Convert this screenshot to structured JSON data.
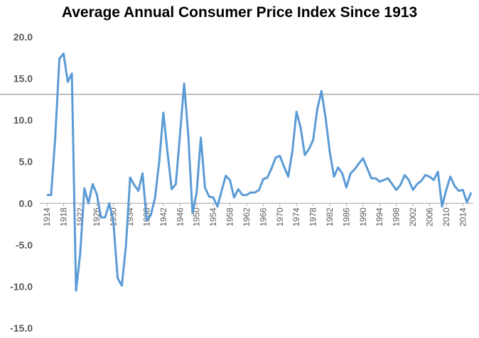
{
  "chart_data": {
    "type": "line",
    "title": "Average Annual Consumer Price Index Since 1913",
    "xlabel": "",
    "ylabel": "",
    "ylim": [
      -15,
      20
    ],
    "y_ticks": [
      "20.0",
      "15.0",
      "10.0",
      "5.0",
      "0.0",
      "-5.0",
      "-10.0",
      "-15.0"
    ],
    "x_tick_labels": [
      "1914",
      "1918",
      "1922",
      "1926",
      "1930",
      "1934",
      "1938",
      "1942",
      "1946",
      "1950",
      "1954",
      "1958",
      "1962",
      "1966",
      "1970",
      "1974",
      "1978",
      "1982",
      "1986",
      "1990",
      "1994",
      "1998",
      "2002",
      "2006",
      "2010",
      "2014"
    ],
    "reference_line_y": 13.1,
    "grid": false,
    "colors": {
      "line": "#5B9BD5",
      "reference_line": "#808080",
      "axis": "#A6A6A6",
      "tick_text": "#595959"
    },
    "series": [
      {
        "x": [
          1914,
          1915,
          1916,
          1917,
          1918,
          1919,
          1920,
          1921,
          1922,
          1923,
          1924,
          1925,
          1926,
          1927,
          1928,
          1929,
          1930,
          1931,
          1932,
          1933,
          1934,
          1935,
          1936,
          1937,
          1938,
          1939,
          1940,
          1941,
          1942,
          1943,
          1944,
          1945,
          1946,
          1947,
          1948,
          1949,
          1950,
          1951,
          1952,
          1953,
          1954,
          1955,
          1956,
          1957,
          1958,
          1959,
          1960,
          1961,
          1962,
          1963,
          1964,
          1965,
          1966,
          1967,
          1968,
          1969,
          1970,
          1971,
          1972,
          1973,
          1974,
          1975,
          1976,
          1977,
          1978,
          1979,
          1980,
          1981,
          1982,
          1983,
          1984,
          1985,
          1986,
          1987,
          1988,
          1989,
          1990,
          1991,
          1992,
          1993,
          1994,
          1995,
          1996,
          1997,
          1998,
          1999,
          2000,
          2001,
          2002,
          2003,
          2004,
          2005,
          2006,
          2007,
          2008,
          2009,
          2010,
          2011,
          2012,
          2013,
          2014,
          2015,
          2016
        ],
        "values": [
          1.0,
          1.0,
          7.9,
          17.4,
          18.0,
          14.6,
          15.6,
          -10.5,
          -6.1,
          1.8,
          0.0,
          2.3,
          1.1,
          -1.7,
          -1.7,
          0.0,
          -2.3,
          -9.0,
          -9.9,
          -5.1,
          3.1,
          2.2,
          1.5,
          3.6,
          -2.1,
          -1.4,
          0.7,
          5.0,
          10.9,
          6.1,
          1.7,
          2.3,
          8.3,
          14.4,
          8.1,
          -1.2,
          1.3,
          7.9,
          1.9,
          0.8,
          0.7,
          -0.4,
          1.5,
          3.3,
          2.8,
          0.7,
          1.7,
          1.0,
          1.0,
          1.3,
          1.3,
          1.6,
          2.9,
          3.1,
          4.2,
          5.5,
          5.7,
          4.4,
          3.2,
          6.2,
          11.0,
          9.1,
          5.8,
          6.5,
          7.6,
          11.3,
          13.5,
          10.3,
          6.2,
          3.2,
          4.3,
          3.6,
          1.9,
          3.6,
          4.1,
          4.8,
          5.4,
          4.2,
          3.0,
          3.0,
          2.6,
          2.8,
          3.0,
          2.3,
          1.6,
          2.2,
          3.4,
          2.8,
          1.6,
          2.3,
          2.7,
          3.4,
          3.2,
          2.8,
          3.8,
          -0.4,
          1.6,
          3.2,
          2.1,
          1.5,
          1.6,
          0.1,
          1.3
        ]
      }
    ]
  }
}
